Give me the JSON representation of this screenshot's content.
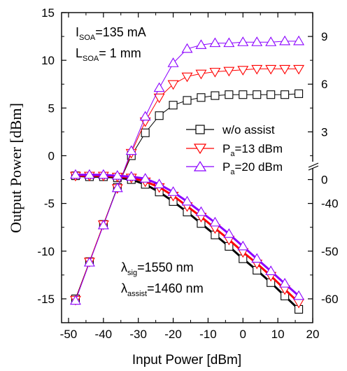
{
  "chart_data": {
    "type": "line",
    "xlabel": "Input Power [dBm]",
    "ylabel": "Output Power [dBm]",
    "xlim": [
      -52,
      20
    ],
    "ylim": [
      -17.5,
      15
    ],
    "x_ticks": [
      -50,
      -40,
      -30,
      -20,
      -10,
      0,
      10,
      20
    ],
    "y_ticks": [
      -15,
      -10,
      -5,
      0,
      5,
      10,
      15
    ],
    "right_axis_upper": {
      "ticks": [
        9,
        6,
        3,
        0
      ],
      "note": "Upper right scale: 0 to 9 with break marker at 0"
    },
    "right_axis_lower": {
      "ticks": [
        -40,
        -50,
        -60
      ]
    },
    "annotations": {
      "isoa_main": "I",
      "isoa_sub": "SOA",
      "isoa_val": "=135 mA",
      "lsoa_main": "L",
      "lsoa_sub": "SOA",
      "lsoa_val": "= 1 mm",
      "lsig_main": "λ",
      "lsig_sub": "sig",
      "lsig_val": "=1550 nm",
      "lassist_main": "λ",
      "lassist_sub": "assist",
      "lassist_val": "=1460 nm"
    },
    "legend": {
      "placement": "right-middle",
      "entries": [
        {
          "main": "w/o assist",
          "sub": "",
          "val": ""
        },
        {
          "main": "P",
          "sub": "a",
          "val": "=13 dBm"
        },
        {
          "main": "P",
          "sub": "a",
          "val": "=20 dBm"
        }
      ]
    },
    "x": [
      -48,
      -44,
      -40,
      -36,
      -32,
      -28,
      -24,
      -20,
      -16,
      -12,
      -8,
      -4,
      0,
      4,
      8,
      12,
      16
    ],
    "series": [
      {
        "name": "w/o assist",
        "color": "#000000",
        "marker": "square",
        "gain": [
          -15.0,
          -11.1,
          -7.2,
          -3.3,
          0.0,
          2.4,
          4.2,
          5.3,
          5.8,
          6.1,
          6.3,
          6.4,
          6.4,
          6.4,
          6.4,
          6.4,
          6.5
        ],
        "noise": [
          -2.1,
          -2.2,
          -2.2,
          -2.3,
          -2.5,
          -3.0,
          -3.8,
          -4.8,
          -5.9,
          -7.1,
          -8.3,
          -9.5,
          -10.8,
          -12.0,
          -13.3,
          -14.7,
          -16.1
        ]
      },
      {
        "name": "P_a=13 dBm",
        "color": "#ff0000",
        "marker": "triangle-down",
        "gain": [
          -15.1,
          -11.1,
          -7.2,
          -3.4,
          0.3,
          3.6,
          6.1,
          7.5,
          8.3,
          8.6,
          8.8,
          8.9,
          9.0,
          9.1,
          9.1,
          9.1,
          9.1
        ],
        "noise": [
          -2.1,
          -2.1,
          -2.1,
          -2.2,
          -2.3,
          -2.7,
          -3.3,
          -4.2,
          -5.3,
          -6.4,
          -7.6,
          -8.8,
          -10.1,
          -11.3,
          -12.6,
          -14.0,
          -15.4
        ]
      },
      {
        "name": "P_a=20 dBm",
        "color": "#8b00ff",
        "marker": "triangle-up",
        "gain": [
          -15.2,
          -11.2,
          -7.3,
          -3.4,
          0.5,
          4.1,
          7.1,
          9.7,
          11.2,
          11.6,
          11.8,
          11.8,
          11.9,
          11.9,
          11.9,
          12.0,
          12.0
        ],
        "noise": [
          -2.0,
          -2.0,
          -2.0,
          -2.1,
          -2.2,
          -2.4,
          -3.0,
          -3.8,
          -4.8,
          -5.9,
          -7.0,
          -8.2,
          -9.5,
          -10.8,
          -12.1,
          -13.4,
          -14.7
        ]
      }
    ]
  }
}
